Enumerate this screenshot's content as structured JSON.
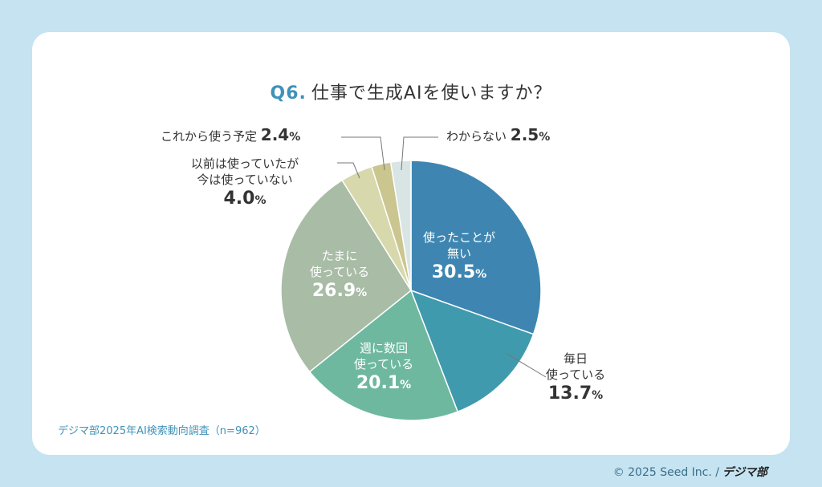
{
  "title": {
    "q": "Q6.",
    "text": "仕事で生成AIを使いますか？"
  },
  "chart_data": {
    "type": "pie",
    "slices": [
      {
        "label": "使ったことが無い",
        "value": 30.5,
        "color": "#3e86b1"
      },
      {
        "label": "毎日使っている",
        "value": 13.7,
        "color": "#409aae"
      },
      {
        "label": "週に数回使っている",
        "value": 20.1,
        "color": "#6fb8a0"
      },
      {
        "label": "たまに使っている",
        "value": 26.9,
        "color": "#a8bca6"
      },
      {
        "label": "以前は使っていたが今は使っていない",
        "value": 4.0,
        "color": "#d7d9ad"
      },
      {
        "label": "これから使う予定",
        "value": 2.4,
        "color": "#cbc590"
      },
      {
        "label": "わからない",
        "value": 2.5,
        "color": "#d9e5e5"
      }
    ]
  },
  "labels": {
    "s0": {
      "l1": "使ったことが",
      "l2": "無い",
      "num": "30.5",
      "unit": "%"
    },
    "s1": {
      "l1": "毎日",
      "l2": "使っている",
      "num": "13.7",
      "unit": "%"
    },
    "s2": {
      "l1": "週に数回",
      "l2": "使っている",
      "num": "20.1",
      "unit": "%"
    },
    "s3": {
      "l1": "たまに",
      "l2": "使っている",
      "num": "26.9",
      "unit": "%"
    },
    "s4": {
      "l1": "以前は使っていたが",
      "l2": "今は使っていない",
      "num": "4.0",
      "unit": "%"
    },
    "s5": {
      "l1": "これから使う予定",
      "num": "2.4",
      "unit": "%"
    },
    "s6": {
      "l1": "わからない",
      "num": "2.5",
      "unit": "%"
    }
  },
  "footnote": "デジマ部2025年AI検索動向調査（n=962）",
  "copyright": {
    "text": "© 2025 Seed Inc. /",
    "brand": "デジマ部"
  }
}
